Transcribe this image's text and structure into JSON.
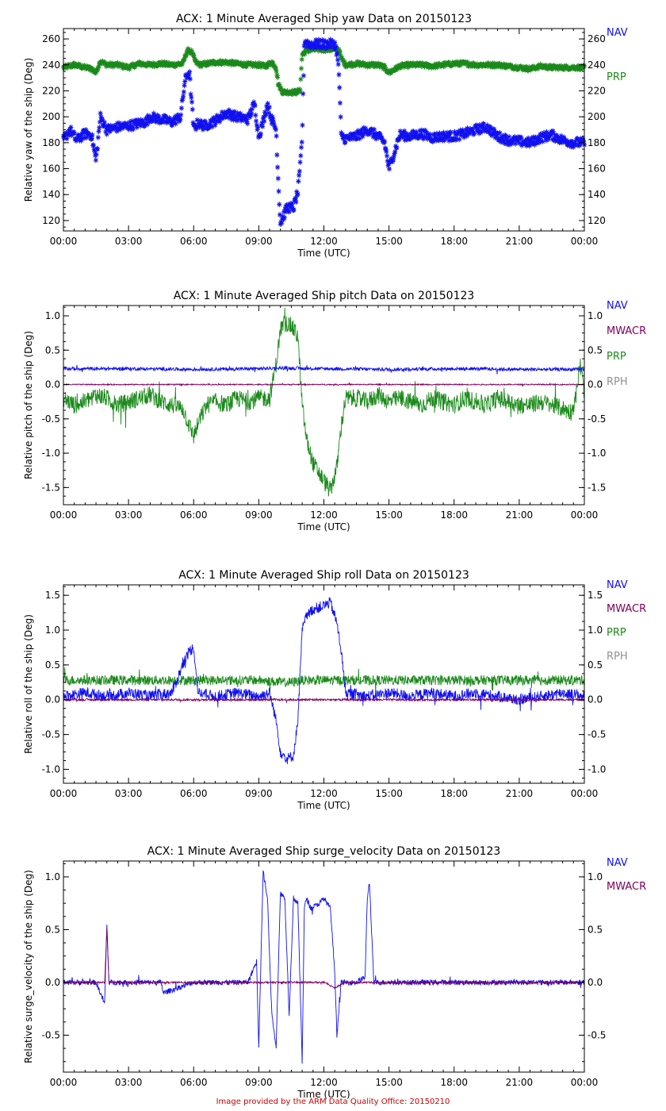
{
  "colors": {
    "NAV": "#1010f0",
    "MWACR": "#800060",
    "PRP": "#1a8a1a",
    "RPH": "#909090",
    "axis": "#000000",
    "credit": "#cc0000"
  },
  "credit": "Image provided by the ARM Data Quality Office: 20150210",
  "chart_data": [
    {
      "type": "scatter",
      "title": "ACX: 1 Minute Averaged Ship yaw Data on 20150123",
      "xlabel": "Time (UTC)",
      "ylabel": "Relative yaw of the ship (Deg)",
      "xlim": [
        0,
        24
      ],
      "ylim": [
        112,
        268
      ],
      "yticks": [
        120,
        140,
        160,
        180,
        200,
        220,
        240,
        260
      ],
      "ytick_labels": [
        "120",
        "140",
        "160",
        "180",
        "200",
        "220",
        "240",
        "260"
      ],
      "xticks": [
        0,
        3,
        6,
        9,
        12,
        15,
        18,
        21,
        24
      ],
      "xtick_labels": [
        "00:00",
        "03:00",
        "06:00",
        "09:00",
        "12:00",
        "15:00",
        "18:00",
        "21:00",
        "00:00"
      ],
      "legend": [
        "NAV",
        "PRP"
      ],
      "marker": "asterisk",
      "series": [
        {
          "name": "PRP",
          "x": [
            0,
            0.5,
            1.0,
            1.3,
            1.5,
            1.7,
            2.0,
            2.5,
            3.0,
            3.5,
            4.0,
            4.5,
            5.0,
            5.5,
            5.7,
            5.9,
            6.1,
            6.3,
            7.0,
            7.5,
            8.0,
            8.5,
            9.0,
            9.3,
            9.6,
            9.8,
            9.9,
            10.1,
            10.4,
            10.7,
            10.9,
            11.0,
            11.2,
            11.5,
            12.0,
            12.5,
            12.7,
            12.8,
            13.0,
            13.5,
            14.0,
            14.5,
            14.8,
            15.0,
            15.5,
            16.0,
            16.5,
            17.0,
            17.5,
            18.0,
            18.5,
            19.0,
            19.5,
            20.0,
            20.5,
            21.0,
            21.5,
            22.0,
            22.5,
            23.0,
            23.5,
            24.0
          ],
          "values": [
            238,
            240,
            238,
            237,
            234,
            243,
            240,
            240,
            238,
            241,
            240,
            241,
            240,
            241,
            251,
            250,
            242,
            240,
            242,
            242,
            241,
            240,
            240,
            239,
            242,
            238,
            225,
            219,
            219,
            219,
            220,
            248,
            251,
            252,
            252,
            252,
            252,
            245,
            240,
            241,
            240,
            240,
            238,
            234,
            239,
            240,
            240,
            239,
            240,
            241,
            241,
            240,
            240,
            240,
            239,
            238,
            237,
            239,
            238,
            238,
            238,
            238
          ]
        },
        {
          "name": "NAV",
          "x": [
            0,
            0.3,
            0.6,
            1.0,
            1.3,
            1.5,
            1.7,
            2.0,
            2.5,
            3.0,
            3.5,
            3.8,
            4.0,
            4.5,
            5.0,
            5.4,
            5.6,
            5.8,
            6.0,
            6.2,
            6.5,
            7.0,
            7.5,
            8.0,
            8.5,
            8.8,
            9.0,
            9.2,
            9.4,
            9.6,
            9.8,
            9.9,
            10.0,
            10.3,
            10.6,
            10.8,
            10.9,
            11.0,
            11.1,
            11.3,
            11.5,
            12.0,
            12.5,
            12.6,
            12.7,
            12.8,
            13.0,
            13.5,
            14.0,
            14.5,
            14.8,
            15.0,
            15.5,
            16.0,
            16.5,
            17.0,
            17.5,
            18.0,
            18.5,
            19.0,
            19.5,
            20.0,
            20.5,
            21.0,
            21.5,
            22.0,
            22.5,
            23.0,
            23.5,
            24.0
          ],
          "values": [
            182,
            190,
            182,
            187,
            186,
            166,
            200,
            190,
            192,
            193,
            195,
            196,
            200,
            198,
            196,
            200,
            228,
            235,
            191,
            195,
            193,
            197,
            203,
            200,
            198,
            210,
            185,
            196,
            210,
            198,
            190,
            150,
            118,
            130,
            130,
            142,
            160,
            185,
            259,
            256,
            256,
            256,
            256,
            250,
            232,
            185,
            183,
            185,
            190,
            185,
            180,
            160,
            186,
            185,
            187,
            184,
            185,
            185,
            187,
            190,
            192,
            185,
            182,
            181,
            180,
            184,
            186,
            182,
            180,
            180
          ]
        }
      ]
    },
    {
      "type": "line",
      "title": "ACX: 1 Minute Averaged Ship pitch Data on 20150123",
      "xlabel": "Time (UTC)",
      "ylabel": "Relative pitch of the ship (Deg)",
      "xlim": [
        0,
        24
      ],
      "ylim": [
        -1.75,
        1.15
      ],
      "yticks": [
        -1.5,
        -1.0,
        -0.5,
        0.0,
        0.5,
        1.0
      ],
      "ytick_labels": [
        "-1.5",
        "-1.0",
        "-0.5",
        "0.0",
        "0.5",
        "1.0"
      ],
      "xticks": [
        0,
        3,
        6,
        9,
        12,
        15,
        18,
        21,
        24
      ],
      "xtick_labels": [
        "00:00",
        "03:00",
        "06:00",
        "09:00",
        "12:00",
        "15:00",
        "18:00",
        "21:00",
        "00:00"
      ],
      "legend": [
        "NAV",
        "MWACR",
        "PRP",
        "RPH"
      ],
      "series": [
        {
          "name": "PRP",
          "x": [
            0,
            0.5,
            1.0,
            1.5,
            2.0,
            2.5,
            3.0,
            3.5,
            4.0,
            4.5,
            5.0,
            5.5,
            5.8,
            6.0,
            6.3,
            6.6,
            7.0,
            7.5,
            8.0,
            8.5,
            9.0,
            9.5,
            9.8,
            10.0,
            10.2,
            10.5,
            10.8,
            11.0,
            11.2,
            11.5,
            11.8,
            12.0,
            12.3,
            12.6,
            12.8,
            13.0,
            13.5,
            14.0,
            14.5,
            15.0,
            15.5,
            16.0,
            16.5,
            17.0,
            17.5,
            18.0,
            18.5,
            19.0,
            19.5,
            20.0,
            20.5,
            21.0,
            21.5,
            22.0,
            22.5,
            23.0,
            23.4,
            23.6,
            23.8,
            24.0
          ],
          "values": [
            -0.2,
            -0.3,
            -0.25,
            -0.15,
            -0.2,
            -0.3,
            -0.25,
            -0.2,
            -0.15,
            -0.25,
            -0.3,
            -0.35,
            -0.6,
            -0.75,
            -0.5,
            -0.3,
            -0.25,
            -0.3,
            -0.2,
            -0.25,
            -0.2,
            -0.2,
            0.3,
            0.8,
            0.9,
            0.85,
            0.7,
            -0.3,
            -0.8,
            -1.15,
            -1.3,
            -1.4,
            -1.55,
            -1.2,
            -0.6,
            -0.2,
            -0.2,
            -0.25,
            -0.15,
            -0.25,
            -0.2,
            -0.25,
            -0.3,
            -0.2,
            -0.25,
            -0.3,
            -0.2,
            -0.25,
            -0.3,
            -0.2,
            -0.25,
            -0.3,
            -0.3,
            -0.25,
            -0.3,
            -0.35,
            -0.4,
            -0.2,
            0.3,
            -0.1
          ]
        },
        {
          "name": "NAV",
          "x": [
            0,
            3,
            6,
            9,
            10,
            12,
            15,
            18,
            21,
            24
          ],
          "values": [
            0.23,
            0.23,
            0.22,
            0.23,
            0.24,
            0.23,
            0.22,
            0.23,
            0.22,
            0.22
          ]
        },
        {
          "name": "MWACR",
          "x": [
            0,
            3,
            6,
            9,
            12,
            15,
            18,
            21,
            24
          ],
          "values": [
            0.0,
            0.0,
            0.0,
            0.0,
            0.0,
            0.0,
            0.0,
            0.0,
            0.0
          ]
        }
      ]
    },
    {
      "type": "line",
      "title": "ACX: 1 Minute Averaged Ship roll Data on 20150123",
      "xlabel": "Time (UTC)",
      "ylabel": "Relative roll of the ship (Deg)",
      "xlim": [
        0,
        24
      ],
      "ylim": [
        -1.2,
        1.65
      ],
      "yticks": [
        -1.0,
        -0.5,
        0.0,
        0.5,
        1.0,
        1.5
      ],
      "ytick_labels": [
        "-1.0",
        "-0.5",
        "0.0",
        "0.5",
        "1.0",
        "1.5"
      ],
      "xticks": [
        0,
        3,
        6,
        9,
        12,
        15,
        18,
        21,
        24
      ],
      "xtick_labels": [
        "00:00",
        "03:00",
        "06:00",
        "09:00",
        "12:00",
        "15:00",
        "18:00",
        "21:00",
        "00:00"
      ],
      "legend": [
        "NAV",
        "MWACR",
        "PRP",
        "RPH"
      ],
      "series": [
        {
          "name": "PRP",
          "x": [
            0,
            3,
            6,
            9,
            10,
            10.5,
            11,
            12,
            13,
            15,
            18,
            21,
            24
          ],
          "values": [
            0.28,
            0.28,
            0.28,
            0.28,
            0.25,
            0.25,
            0.28,
            0.28,
            0.28,
            0.28,
            0.28,
            0.28,
            0.28
          ]
        },
        {
          "name": "NAV",
          "x": [
            0,
            1.0,
            2.0,
            3.0,
            4.0,
            5.0,
            5.5,
            5.8,
            6.0,
            6.2,
            7.0,
            8.0,
            9.0,
            9.5,
            9.8,
            10.0,
            10.3,
            10.6,
            10.8,
            11.0,
            11.2,
            11.5,
            12.0,
            12.3,
            12.6,
            12.8,
            13.0,
            14.0,
            15.0,
            16.0,
            17.0,
            18.0,
            19.0,
            20.0,
            21.0,
            22.0,
            23.0,
            24.0
          ],
          "values": [
            0.05,
            0.1,
            0.05,
            0.1,
            0.05,
            0.1,
            0.5,
            0.7,
            0.75,
            0.1,
            0.05,
            0.1,
            0.05,
            0.1,
            -0.3,
            -0.75,
            -0.85,
            -0.8,
            -0.3,
            1.0,
            1.2,
            1.3,
            1.35,
            1.4,
            1.1,
            0.7,
            0.1,
            0.05,
            0.1,
            0.05,
            0.1,
            0.05,
            0.1,
            0.05,
            0.0,
            0.05,
            0.1,
            0.05
          ]
        },
        {
          "name": "MWACR",
          "x": [
            0,
            3,
            6,
            9,
            12,
            15,
            18,
            21,
            24
          ],
          "values": [
            0.0,
            0.0,
            0.0,
            0.0,
            0.0,
            0.0,
            0.0,
            0.0,
            0.0
          ]
        }
      ]
    },
    {
      "type": "line",
      "title": "ACX: 1 Minute Averaged Ship surge_velocity Data on 20150123",
      "xlabel": "Time (UTC)",
      "ylabel": "Relative surge_velocity of the ship (Deg)",
      "xlim": [
        0,
        24
      ],
      "ylim": [
        -0.85,
        1.15
      ],
      "yticks": [
        -0.5,
        0.0,
        0.5,
        1.0
      ],
      "ytick_labels": [
        "-0.5",
        "0.0",
        "0.5",
        "1.0"
      ],
      "xticks": [
        0,
        3,
        6,
        9,
        12,
        15,
        18,
        21,
        24
      ],
      "xtick_labels": [
        "00:00",
        "03:00",
        "06:00",
        "09:00",
        "12:00",
        "15:00",
        "18:00",
        "21:00",
        "00:00"
      ],
      "legend": [
        "NAV",
        "MWACR"
      ],
      "series": [
        {
          "name": "NAV",
          "x": [
            0,
            1.5,
            1.9,
            2.0,
            2.1,
            3.0,
            4.5,
            4.6,
            6.0,
            8.5,
            8.9,
            9.0,
            9.2,
            9.4,
            9.6,
            9.8,
            10.0,
            10.2,
            10.4,
            10.6,
            10.8,
            11.0,
            11.1,
            11.2,
            11.4,
            11.8,
            12.0,
            12.3,
            12.5,
            12.6,
            12.8,
            13.0,
            13.5,
            13.9,
            14.0,
            14.1,
            14.3,
            15.0,
            18.0,
            21.0,
            24.0
          ],
          "values": [
            0.0,
            0.0,
            -0.2,
            0.55,
            0.0,
            0.0,
            0.0,
            -0.1,
            0.0,
            0.0,
            0.2,
            -0.6,
            1.05,
            0.8,
            -0.3,
            -0.6,
            0.85,
            0.8,
            -0.3,
            0.8,
            0.75,
            -0.75,
            0.7,
            0.8,
            0.7,
            0.75,
            0.8,
            0.7,
            0.1,
            -0.5,
            0.0,
            0.0,
            0.0,
            0.05,
            0.8,
            0.95,
            0.0,
            0.0,
            0.0,
            0.0,
            0.0
          ]
        },
        {
          "name": "MWACR",
          "x": [
            0,
            1.9,
            2.0,
            2.1,
            3.0,
            6.0,
            9.0,
            12.0,
            12.5,
            13.0,
            15.0,
            18.0,
            21.0,
            24.0
          ],
          "values": [
            0.0,
            0.0,
            0.5,
            0.0,
            0.0,
            0.0,
            0.0,
            0.0,
            -0.05,
            0.0,
            0.0,
            0.0,
            0.0,
            0.0
          ]
        }
      ]
    }
  ]
}
